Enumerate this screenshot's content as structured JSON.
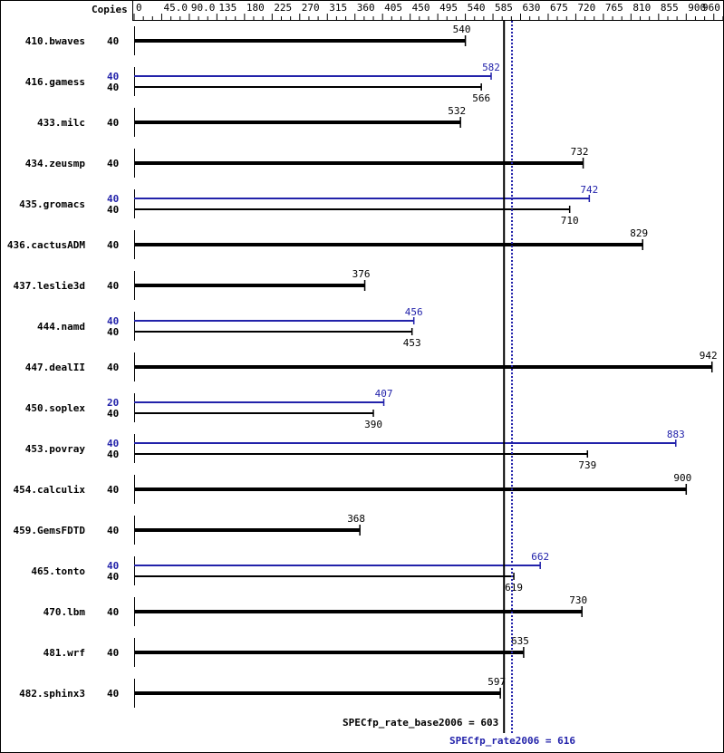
{
  "chart_data": {
    "type": "bar",
    "orientation": "horizontal",
    "copies_header": "Copies",
    "xlim": [
      0,
      960
    ],
    "tick_labels": [
      "0",
      "45.0",
      "90.0",
      "135",
      "180",
      "225",
      "270",
      "315",
      "360",
      "405",
      "450",
      "495",
      "540",
      "585",
      "630",
      "675",
      "720",
      "765",
      "810",
      "855",
      "900",
      "960"
    ],
    "colors": {
      "base": "#000000",
      "peak": "#2222aa"
    },
    "benchmarks": [
      {
        "name": "410.bwaves",
        "base_copies": "40",
        "base": 540
      },
      {
        "name": "416.gamess",
        "peak_copies": "40",
        "peak": 582,
        "base_copies": "40",
        "base": 566
      },
      {
        "name": "433.milc",
        "base_copies": "40",
        "base": 532
      },
      {
        "name": "434.zeusmp",
        "base_copies": "40",
        "base": 732
      },
      {
        "name": "435.gromacs",
        "peak_copies": "40",
        "peak": 742,
        "base_copies": "40",
        "base": 710
      },
      {
        "name": "436.cactusADM",
        "base_copies": "40",
        "base": 829
      },
      {
        "name": "437.leslie3d",
        "base_copies": "40",
        "base": 376
      },
      {
        "name": "444.namd",
        "peak_copies": "40",
        "peak": 456,
        "base_copies": "40",
        "base": 453
      },
      {
        "name": "447.dealII",
        "base_copies": "40",
        "base": 942
      },
      {
        "name": "450.soplex",
        "peak_copies": "20",
        "peak": 407,
        "base_copies": "40",
        "base": 390
      },
      {
        "name": "453.povray",
        "peak_copies": "40",
        "peak": 883,
        "base_copies": "40",
        "base": 739
      },
      {
        "name": "454.calculix",
        "base_copies": "40",
        "base": 900
      },
      {
        "name": "459.GemsFDTD",
        "base_copies": "40",
        "base": 368
      },
      {
        "name": "465.tonto",
        "peak_copies": "40",
        "peak": 662,
        "base_copies": "40",
        "base": 619
      },
      {
        "name": "470.lbm",
        "base_copies": "40",
        "base": 730
      },
      {
        "name": "481.wrf",
        "base_copies": "40",
        "base": 635
      },
      {
        "name": "482.sphinx3",
        "base_copies": "40",
        "base": 597
      }
    ],
    "base_mean": {
      "label": "SPECfp_rate_base2006 = 603",
      "value": 603
    },
    "peak_mean": {
      "label": "SPECfp_rate2006 = 616",
      "value": 616
    }
  }
}
